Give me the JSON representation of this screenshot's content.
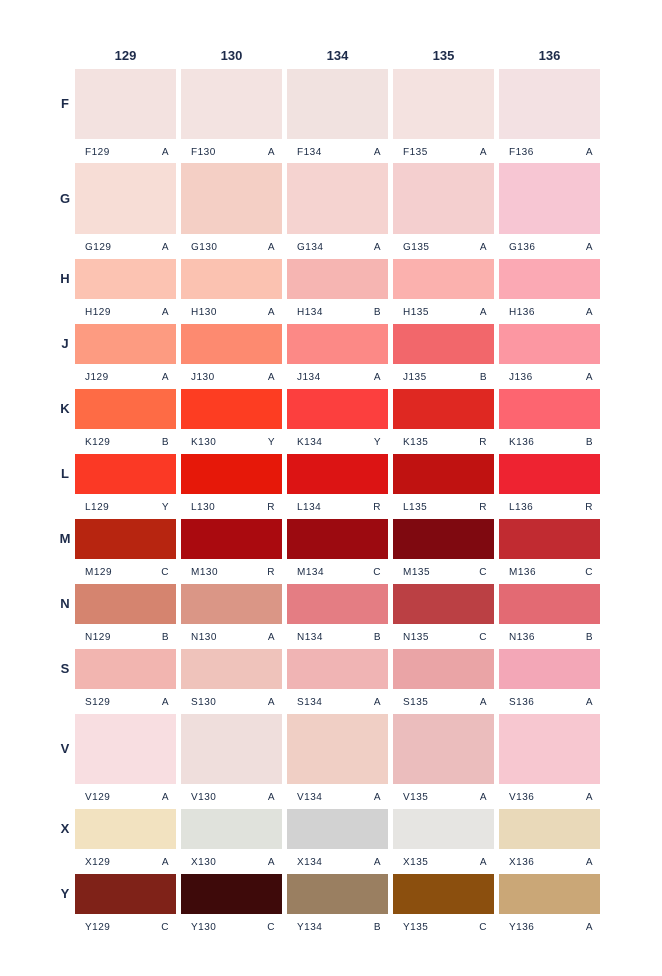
{
  "columns": [
    "129",
    "130",
    "134",
    "135",
    "136"
  ],
  "rows": [
    {
      "letter": "F",
      "cells": [
        {
          "code": "F129",
          "grade": "A",
          "color": "#f3e2e0"
        },
        {
          "code": "F130",
          "grade": "A",
          "color": "#f3e3e1"
        },
        {
          "code": "F134",
          "grade": "A",
          "color": "#f1e2e0"
        },
        {
          "code": "F135",
          "grade": "A",
          "color": "#f4e2e0"
        },
        {
          "code": "F136",
          "grade": "A",
          "color": "#f3e1e3"
        }
      ]
    },
    {
      "letter": "G",
      "cells": [
        {
          "code": "G129",
          "grade": "A",
          "color": "#f7ddd6"
        },
        {
          "code": "G130",
          "grade": "A",
          "color": "#f4cfc5"
        },
        {
          "code": "G134",
          "grade": "A",
          "color": "#f5d3d0"
        },
        {
          "code": "G135",
          "grade": "A",
          "color": "#f4cfcf"
        },
        {
          "code": "G136",
          "grade": "A",
          "color": "#f7c6d3"
        }
      ]
    },
    {
      "letter": "H",
      "cells": [
        {
          "code": "H129",
          "grade": "A",
          "color": "#fcc3b2"
        },
        {
          "code": "H130",
          "grade": "A",
          "color": "#fbc2b1"
        },
        {
          "code": "H134",
          "grade": "B",
          "color": "#f6b5b2"
        },
        {
          "code": "H135",
          "grade": "A",
          "color": "#fbb1ae"
        },
        {
          "code": "H136",
          "grade": "A",
          "color": "#fba9b4"
        }
      ]
    },
    {
      "letter": "J",
      "cells": [
        {
          "code": "J129",
          "grade": "A",
          "color": "#fd9b81"
        },
        {
          "code": "J130",
          "grade": "A",
          "color": "#fd8a70"
        },
        {
          "code": "J134",
          "grade": "A",
          "color": "#fc8986"
        },
        {
          "code": "J135",
          "grade": "B",
          "color": "#f2676b"
        },
        {
          "code": "J136",
          "grade": "A",
          "color": "#fc97a2"
        }
      ]
    },
    {
      "letter": "K",
      "cells": [
        {
          "code": "K129",
          "grade": "B",
          "color": "#fe6b45"
        },
        {
          "code": "K130",
          "grade": "Y",
          "color": "#fd3d22"
        },
        {
          "code": "K134",
          "grade": "Y",
          "color": "#fc3f3e"
        },
        {
          "code": "K135",
          "grade": "R",
          "color": "#df2822"
        },
        {
          "code": "K136",
          "grade": "B",
          "color": "#fd6570"
        }
      ]
    },
    {
      "letter": "L",
      "cells": [
        {
          "code": "L129",
          "grade": "Y",
          "color": "#fb3925"
        },
        {
          "code": "L130",
          "grade": "R",
          "color": "#e61809"
        },
        {
          "code": "L134",
          "grade": "R",
          "color": "#dc1414"
        },
        {
          "code": "L135",
          "grade": "R",
          "color": "#c01211"
        },
        {
          "code": "L136",
          "grade": "R",
          "color": "#ee2331"
        }
      ]
    },
    {
      "letter": "M",
      "cells": [
        {
          "code": "M129",
          "grade": "C",
          "color": "#b72510"
        },
        {
          "code": "M130",
          "grade": "R",
          "color": "#aa0a0f"
        },
        {
          "code": "M134",
          "grade": "C",
          "color": "#9c0a10"
        },
        {
          "code": "M135",
          "grade": "C",
          "color": "#7f0910"
        },
        {
          "code": "M136",
          "grade": "C",
          "color": "#c12b31"
        }
      ]
    },
    {
      "letter": "N",
      "cells": [
        {
          "code": "N129",
          "grade": "B",
          "color": "#d5846f"
        },
        {
          "code": "N130",
          "grade": "A",
          "color": "#da9686"
        },
        {
          "code": "N134",
          "grade": "B",
          "color": "#e47d83"
        },
        {
          "code": "N135",
          "grade": "C",
          "color": "#bb4044"
        },
        {
          "code": "N136",
          "grade": "B",
          "color": "#e36a73"
        }
      ]
    },
    {
      "letter": "S",
      "cells": [
        {
          "code": "S129",
          "grade": "A",
          "color": "#f2b5b0"
        },
        {
          "code": "S130",
          "grade": "A",
          "color": "#efc3bb"
        },
        {
          "code": "S134",
          "grade": "A",
          "color": "#f0b4b4"
        },
        {
          "code": "S135",
          "grade": "A",
          "color": "#eaa4a6"
        },
        {
          "code": "S136",
          "grade": "A",
          "color": "#f3a7b7"
        }
      ]
    },
    {
      "letter": "V",
      "cells": [
        {
          "code": "V129",
          "grade": "A",
          "color": "#f8dee1"
        },
        {
          "code": "V130",
          "grade": "A",
          "color": "#efdedc"
        },
        {
          "code": "V134",
          "grade": "A",
          "color": "#f0cfc5"
        },
        {
          "code": "V135",
          "grade": "A",
          "color": "#ebbdbd"
        },
        {
          "code": "V136",
          "grade": "A",
          "color": "#f7c7d0"
        }
      ]
    },
    {
      "letter": "X",
      "cells": [
        {
          "code": "X129",
          "grade": "A",
          "color": "#f2e2c0"
        },
        {
          "code": "X130",
          "grade": "A",
          "color": "#e0e2dc"
        },
        {
          "code": "X134",
          "grade": "A",
          "color": "#d2d2d2"
        },
        {
          "code": "X135",
          "grade": "A",
          "color": "#e6e5e2"
        },
        {
          "code": "X136",
          "grade": "A",
          "color": "#e9d9b9"
        }
      ]
    },
    {
      "letter": "Y",
      "cells": [
        {
          "code": "Y129",
          "grade": "C",
          "color": "#7f2218"
        },
        {
          "code": "Y130",
          "grade": "C",
          "color": "#3e0a0a"
        },
        {
          "code": "Y134",
          "grade": "B",
          "color": "#9a7f61"
        },
        {
          "code": "Y135",
          "grade": "C",
          "color": "#8b4f0e"
        },
        {
          "code": "Y136",
          "grade": "A",
          "color": "#caa777"
        }
      ]
    }
  ]
}
